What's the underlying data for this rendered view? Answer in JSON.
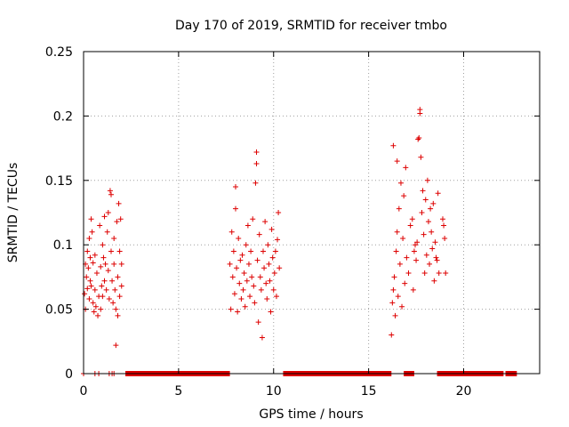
{
  "chart_data": {
    "type": "scatter",
    "title": "Day 170 of 2019, SRMTID for receiver tmbo",
    "xlabel": "GPS time / hours",
    "ylabel": "SRMTID / TECUs",
    "xlim": [
      0,
      24
    ],
    "ylim": [
      0,
      0.25
    ],
    "xticks": [
      0,
      5,
      10,
      15,
      20
    ],
    "xtick_labels": [
      "0",
      "5",
      "10",
      "15",
      "20"
    ],
    "yticks": [
      0,
      0.05,
      0.1,
      0.15,
      0.2,
      0.25
    ],
    "ytick_labels": [
      "0",
      "0.05",
      "0.1",
      "0.15",
      "0.2",
      "0.25"
    ],
    "grid": true,
    "marker": "+",
    "series": [
      {
        "name": "SRMTID",
        "color": "#dd0000",
        "points": [
          [
            0.05,
            0.062
          ],
          [
            0.1,
            0.085
          ],
          [
            0.1,
            0.05
          ],
          [
            0.15,
            0.075
          ],
          [
            0.2,
            0.095
          ],
          [
            0.2,
            0.066
          ],
          [
            0.25,
            0.082
          ],
          [
            0.3,
            0.058
          ],
          [
            0.3,
            0.105
          ],
          [
            0.35,
            0.09
          ],
          [
            0.35,
            0.072
          ],
          [
            0.4,
            0.12
          ],
          [
            0.4,
            0.068
          ],
          [
            0.45,
            0.11
          ],
          [
            0.5,
            0.086
          ],
          [
            0.5,
            0.055
          ],
          [
            0.55,
            0.048
          ],
          [
            0.6,
            0.092
          ],
          [
            0.6,
            0.065
          ],
          [
            0.65,
            0.052
          ],
          [
            0.7,
            0.078
          ],
          [
            0.75,
            0.045
          ],
          [
            0.8,
            0.06
          ],
          [
            0.85,
            0.115
          ],
          [
            0.9,
            0.083
          ],
          [
            0.9,
            0.05
          ],
          [
            0.95,
            0.068
          ],
          [
            1.0,
            0.1
          ],
          [
            1.0,
            0.06
          ],
          [
            1.05,
            0.09
          ],
          [
            1.1,
            0.122
          ],
          [
            1.1,
            0.072
          ],
          [
            1.15,
            0.085
          ],
          [
            1.2,
            0.065
          ],
          [
            1.25,
            0.11
          ],
          [
            1.3,
            0.125
          ],
          [
            1.3,
            0.08
          ],
          [
            1.35,
            0.058
          ],
          [
            1.4,
            0.142
          ],
          [
            1.45,
            0.139
          ],
          [
            1.45,
            0.095
          ],
          [
            1.5,
            0.072
          ],
          [
            1.55,
            0.055
          ],
          [
            1.6,
            0.105
          ],
          [
            1.6,
            0.085
          ],
          [
            1.65,
            0.065
          ],
          [
            1.7,
            0.05
          ],
          [
            1.7,
            0.022
          ],
          [
            1.75,
            0.118
          ],
          [
            1.8,
            0.045
          ],
          [
            1.8,
            0.075
          ],
          [
            1.85,
            0.132
          ],
          [
            1.9,
            0.095
          ],
          [
            1.9,
            0.06
          ],
          [
            1.95,
            0.12
          ],
          [
            2.0,
            0.085
          ],
          [
            2.0,
            0.068
          ],
          [
            0,
            0
          ],
          [
            0.6,
            0
          ],
          [
            0.8,
            0
          ],
          [
            1.35,
            0
          ],
          [
            1.5,
            0
          ],
          [
            1.6,
            0
          ],
          [
            7.7,
            0.085
          ],
          [
            7.75,
            0.05
          ],
          [
            7.8,
            0.11
          ],
          [
            7.85,
            0.075
          ],
          [
            7.9,
            0.095
          ],
          [
            7.95,
            0.062
          ],
          [
            8.0,
            0.128
          ],
          [
            8.0,
            0.145
          ],
          [
            8.05,
            0.082
          ],
          [
            8.1,
            0.048
          ],
          [
            8.15,
            0.105
          ],
          [
            8.2,
            0.07
          ],
          [
            8.25,
            0.088
          ],
          [
            8.3,
            0.058
          ],
          [
            8.35,
            0.092
          ],
          [
            8.4,
            0.065
          ],
          [
            8.45,
            0.078
          ],
          [
            8.5,
            0.052
          ],
          [
            8.55,
            0.1
          ],
          [
            8.6,
            0.072
          ],
          [
            8.65,
            0.115
          ],
          [
            8.7,
            0.085
          ],
          [
            8.75,
            0.06
          ],
          [
            8.8,
            0.095
          ],
          [
            8.85,
            0.075
          ],
          [
            8.9,
            0.12
          ],
          [
            8.95,
            0.068
          ],
          [
            9.0,
            0.055
          ],
          [
            9.05,
            0.148
          ],
          [
            9.1,
            0.172
          ],
          [
            9.1,
            0.163
          ],
          [
            9.15,
            0.088
          ],
          [
            9.2,
            0.04
          ],
          [
            9.25,
            0.108
          ],
          [
            9.3,
            0.075
          ],
          [
            9.35,
            0.065
          ],
          [
            9.4,
            0.028
          ],
          [
            9.45,
            0.095
          ],
          [
            9.5,
            0.082
          ],
          [
            9.55,
            0.118
          ],
          [
            9.6,
            0.07
          ],
          [
            9.65,
            0.058
          ],
          [
            9.7,
            0.1
          ],
          [
            9.75,
            0.085
          ],
          [
            9.8,
            0.072
          ],
          [
            9.85,
            0.048
          ],
          [
            9.9,
            0.112
          ],
          [
            9.95,
            0.09
          ],
          [
            10.0,
            0.065
          ],
          [
            10.05,
            0.078
          ],
          [
            10.1,
            0.095
          ],
          [
            10.15,
            0.06
          ],
          [
            10.2,
            0.104
          ],
          [
            10.25,
            0.125
          ],
          [
            10.3,
            0.082
          ],
          [
            16.2,
            0.03
          ],
          [
            16.25,
            0.055
          ],
          [
            16.3,
            0.065
          ],
          [
            16.3,
            0.177
          ],
          [
            16.35,
            0.075
          ],
          [
            16.4,
            0.045
          ],
          [
            16.45,
            0.095
          ],
          [
            16.5,
            0.11
          ],
          [
            16.5,
            0.165
          ],
          [
            16.55,
            0.06
          ],
          [
            16.6,
            0.128
          ],
          [
            16.65,
            0.085
          ],
          [
            16.7,
            0.148
          ],
          [
            16.75,
            0.052
          ],
          [
            16.8,
            0.105
          ],
          [
            16.85,
            0.138
          ],
          [
            16.9,
            0.07
          ],
          [
            16.95,
            0.16
          ],
          [
            17.0,
            0.09
          ],
          [
            17.1,
            0.078
          ],
          [
            17.2,
            0.115
          ],
          [
            17.3,
            0.12
          ],
          [
            17.35,
            0.065
          ],
          [
            17.4,
            0.095
          ],
          [
            17.45,
            0.1
          ],
          [
            17.5,
            0.088
          ],
          [
            17.55,
            0.102
          ],
          [
            17.6,
            0.182
          ],
          [
            17.65,
            0.183
          ],
          [
            17.7,
            0.205
          ],
          [
            17.7,
            0.202
          ],
          [
            17.75,
            0.168
          ],
          [
            17.8,
            0.125
          ],
          [
            17.85,
            0.142
          ],
          [
            17.9,
            0.108
          ],
          [
            17.95,
            0.078
          ],
          [
            18.0,
            0.135
          ],
          [
            18.05,
            0.092
          ],
          [
            18.1,
            0.15
          ],
          [
            18.15,
            0.118
          ],
          [
            18.2,
            0.085
          ],
          [
            18.25,
            0.128
          ],
          [
            18.3,
            0.11
          ],
          [
            18.35,
            0.097
          ],
          [
            18.4,
            0.132
          ],
          [
            18.45,
            0.072
          ],
          [
            18.5,
            0.102
          ],
          [
            18.55,
            0.09
          ],
          [
            18.6,
            0.088
          ],
          [
            18.65,
            0.14
          ],
          [
            18.7,
            0.078
          ],
          [
            18.9,
            0.12
          ],
          [
            18.95,
            0.115
          ],
          [
            19.0,
            0.105
          ],
          [
            19.05,
            0.078
          ]
        ],
        "zero_segments": [
          [
            2.2,
            7.7
          ],
          [
            10.5,
            16.2
          ],
          [
            16.85,
            17.4
          ],
          [
            18.6,
            22.1
          ],
          [
            22.2,
            22.8
          ]
        ]
      }
    ]
  }
}
